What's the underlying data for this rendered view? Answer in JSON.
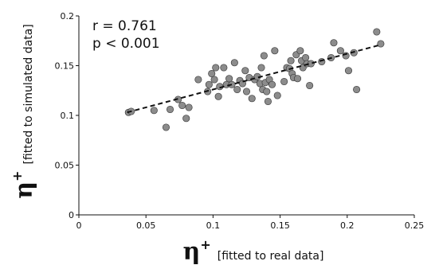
{
  "chart_data": {
    "type": "scatter",
    "title": "",
    "annotations": [
      "r = 0.761",
      "p < 0.001"
    ],
    "xlabel": {
      "symbol": "η",
      "superscript": "+",
      "note": "[fitted to real data]"
    },
    "ylabel": {
      "symbol": "η",
      "superscript": "+",
      "note": "[fitted to simulated data]"
    },
    "xlim": [
      0,
      0.25
    ],
    "ylim": [
      0,
      0.2
    ],
    "xticks": [
      "0",
      "0.05",
      "0.1",
      "0.15",
      "0.2",
      "0.25"
    ],
    "xtick_values": [
      0,
      0.05,
      0.1,
      0.15,
      0.2,
      0.25
    ],
    "yticks": [
      "0",
      "0.05",
      "0.1",
      "0.15",
      "0.2"
    ],
    "ytick_values": [
      0,
      0.05,
      0.1,
      0.15,
      0.2
    ],
    "grid": false,
    "point_color": "#8c8c8c",
    "trendline": {
      "style": "dashed",
      "x": [
        0.036,
        0.225
      ],
      "y": [
        0.103,
        0.171
      ]
    },
    "points": [
      [
        0.037,
        0.103
      ],
      [
        0.039,
        0.104
      ],
      [
        0.056,
        0.105
      ],
      [
        0.065,
        0.088
      ],
      [
        0.068,
        0.106
      ],
      [
        0.074,
        0.116
      ],
      [
        0.077,
        0.11
      ],
      [
        0.08,
        0.097
      ],
      [
        0.082,
        0.108
      ],
      [
        0.089,
        0.136
      ],
      [
        0.096,
        0.124
      ],
      [
        0.097,
        0.131
      ],
      [
        0.099,
        0.142
      ],
      [
        0.101,
        0.136
      ],
      [
        0.102,
        0.148
      ],
      [
        0.104,
        0.119
      ],
      [
        0.105,
        0.129
      ],
      [
        0.108,
        0.148
      ],
      [
        0.11,
        0.131
      ],
      [
        0.112,
        0.137
      ],
      [
        0.114,
        0.131
      ],
      [
        0.116,
        0.153
      ],
      [
        0.118,
        0.126
      ],
      [
        0.12,
        0.135
      ],
      [
        0.122,
        0.132
      ],
      [
        0.124,
        0.145
      ],
      [
        0.125,
        0.124
      ],
      [
        0.127,
        0.138
      ],
      [
        0.129,
        0.117
      ],
      [
        0.131,
        0.136
      ],
      [
        0.133,
        0.139
      ],
      [
        0.135,
        0.132
      ],
      [
        0.136,
        0.148
      ],
      [
        0.137,
        0.126
      ],
      [
        0.138,
        0.16
      ],
      [
        0.139,
        0.133
      ],
      [
        0.14,
        0.124
      ],
      [
        0.141,
        0.114
      ],
      [
        0.142,
        0.136
      ],
      [
        0.144,
        0.131
      ],
      [
        0.146,
        0.165
      ],
      [
        0.148,
        0.12
      ],
      [
        0.153,
        0.134
      ],
      [
        0.155,
        0.148
      ],
      [
        0.157,
        0.147
      ],
      [
        0.158,
        0.155
      ],
      [
        0.159,
        0.142
      ],
      [
        0.16,
        0.138
      ],
      [
        0.162,
        0.161
      ],
      [
        0.163,
        0.137
      ],
      [
        0.165,
        0.165
      ],
      [
        0.166,
        0.155
      ],
      [
        0.167,
        0.148
      ],
      [
        0.169,
        0.158
      ],
      [
        0.17,
        0.152
      ],
      [
        0.172,
        0.13
      ],
      [
        0.173,
        0.152
      ],
      [
        0.181,
        0.154
      ],
      [
        0.188,
        0.158
      ],
      [
        0.19,
        0.173
      ],
      [
        0.195,
        0.165
      ],
      [
        0.199,
        0.16
      ],
      [
        0.201,
        0.145
      ],
      [
        0.205,
        0.163
      ],
      [
        0.207,
        0.126
      ],
      [
        0.222,
        0.184
      ],
      [
        0.225,
        0.172
      ]
    ]
  }
}
